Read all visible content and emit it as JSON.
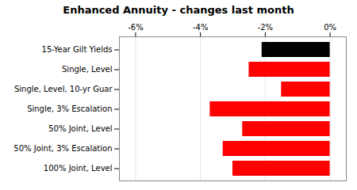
{
  "chart_data": {
    "type": "bar",
    "orientation": "horizontal",
    "title": "Enhanced Annuity - changes last month",
    "categories": [
      "15-Year Gilt Yields",
      "Single, Level",
      "Single, Level, 10-yr Guar",
      "Single, 3% Escalation",
      "50% Joint, Level",
      "50% Joint, 3% Escalation",
      "100% Joint, Level"
    ],
    "values": [
      -2.1,
      -2.5,
      -1.5,
      -3.7,
      -2.7,
      -3.3,
      -3.0
    ],
    "colors": [
      "#000000",
      "#ff0000",
      "#ff0000",
      "#ff0000",
      "#ff0000",
      "#ff0000",
      "#ff0000"
    ],
    "xlim": [
      -6.5,
      0.5
    ],
    "xticks": [
      {
        "value": -6,
        "label": "-6%"
      },
      {
        "value": -4,
        "label": "-4%"
      },
      {
        "value": -2,
        "label": "-2%"
      },
      {
        "value": 0,
        "label": "0%"
      }
    ],
    "grid": true
  }
}
